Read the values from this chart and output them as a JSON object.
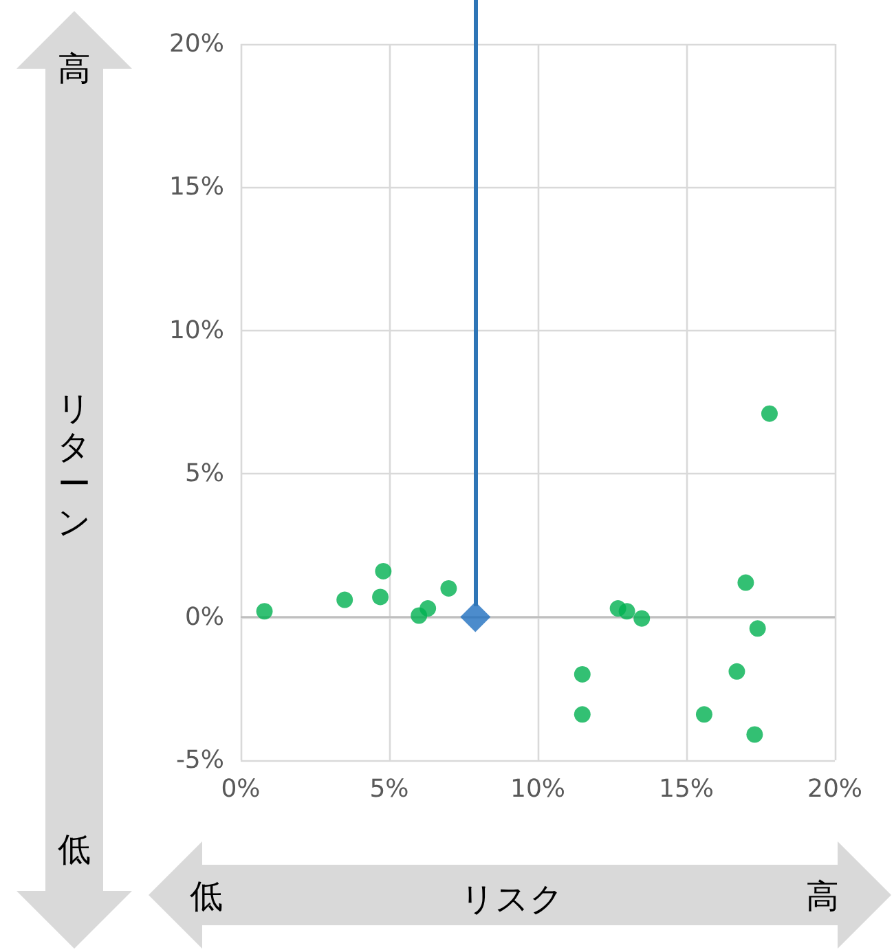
{
  "chart_data": {
    "type": "scatter",
    "xlabel": "リスク",
    "ylabel": "リターン",
    "annotations": [
      "高",
      "低",
      "低",
      "高"
    ],
    "xlim": [
      0,
      20
    ],
    "ylim": [
      -5,
      20
    ],
    "xticks": [
      {
        "value": 0,
        "label": "0%"
      },
      {
        "value": 5,
        "label": "5%"
      },
      {
        "value": 10,
        "label": "10%"
      },
      {
        "value": 15,
        "label": "15%"
      },
      {
        "value": 20,
        "label": "20%"
      }
    ],
    "yticks": [
      {
        "value": -5,
        "label": "-5%"
      },
      {
        "value": 0,
        "label": "0%"
      },
      {
        "value": 5,
        "label": "5%"
      },
      {
        "value": 10,
        "label": "10%"
      },
      {
        "value": 15,
        "label": "15%"
      },
      {
        "value": 20,
        "label": "20%"
      }
    ],
    "grid": true,
    "marker": "circle",
    "series": [
      {
        "color": "#00b050",
        "x": [
          0.8,
          3.5,
          4.7,
          4.8,
          6.0,
          6.3,
          7.0,
          11.5,
          11.5,
          12.7,
          13.0,
          13.5,
          15.6,
          16.7,
          17.0,
          17.4,
          17.3,
          17.8
        ],
        "values": [
          0.2,
          0.6,
          0.7,
          1.6,
          0.05,
          0.3,
          1.0,
          -2.0,
          -3.4,
          0.3,
          0.2,
          -0.05,
          -3.4,
          -1.9,
          1.2,
          -0.4,
          -4.1,
          7.1
        ]
      },
      {
        "color": "#1f6fbf",
        "marker": "diamond",
        "x": [
          7.9
        ],
        "values": [
          0
        ]
      }
    ]
  }
}
